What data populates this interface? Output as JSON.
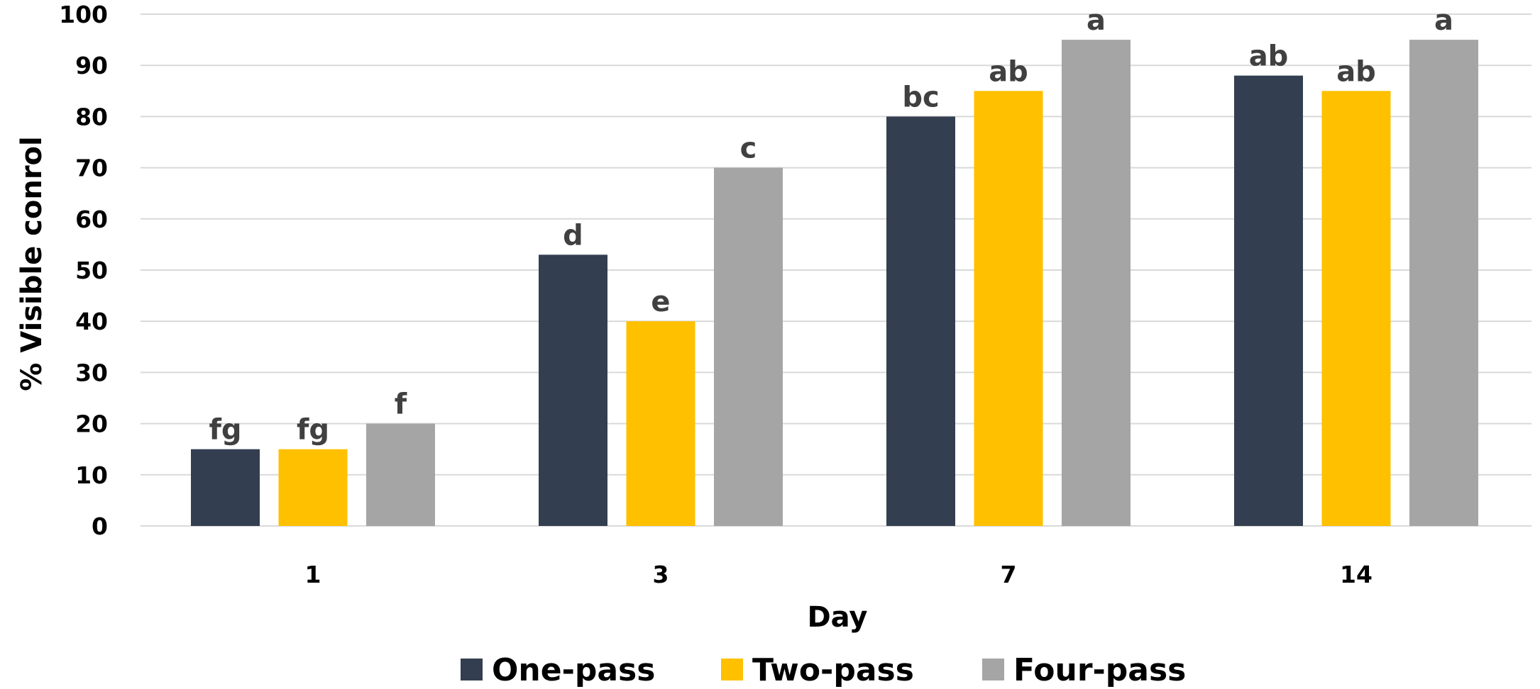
{
  "chart_data": {
    "type": "bar",
    "xlabel": "Day",
    "ylabel": "% Visible conrol",
    "ylim": [
      0,
      100
    ],
    "yticks": [
      "0",
      "10",
      "20",
      "30",
      "40",
      "50",
      "60",
      "70",
      "80",
      "90",
      "100"
    ],
    "categories": [
      "1",
      "3",
      "7",
      "14"
    ],
    "grid": true,
    "legend_position": "bottom",
    "series": [
      {
        "name": "One-pass",
        "color": "#333f50",
        "values": [
          15,
          53,
          80,
          88
        ],
        "labels": [
          "fg",
          "d",
          "bc",
          "ab"
        ]
      },
      {
        "name": "Two-pass",
        "color": "#ffc000",
        "values": [
          15,
          40,
          85,
          85
        ],
        "labels": [
          "fg",
          "e",
          "ab",
          "ab"
        ]
      },
      {
        "name": "Four-pass",
        "color": "#a5a5a5",
        "values": [
          20,
          70,
          95,
          95
        ],
        "labels": [
          "f",
          "c",
          "a",
          "a"
        ]
      }
    ]
  }
}
